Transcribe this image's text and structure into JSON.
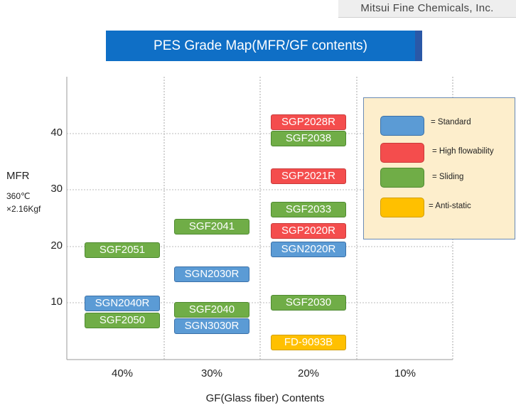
{
  "header": {
    "company": "Mitsui Fine Chemicals, Inc.",
    "title": "PES Grade Map(MFR/GF contents)"
  },
  "chart_data": {
    "type": "scatter",
    "title": "PES Grade Map(MFR/GF contents)",
    "xlabel": "GF(Glass fiber) Contents",
    "ylabel": "MFR",
    "ylabel_sub1": "360℃",
    "ylabel_sub2": "×2.16Kgf",
    "x_categories": [
      "40%",
      "30%",
      "20%",
      "10%"
    ],
    "y_ticks": [
      "10",
      "20",
      "30",
      "40"
    ],
    "ylim": [
      0,
      48
    ],
    "grid": true,
    "legend_position": "right",
    "categories": [
      {
        "key": "standard",
        "label": "= Standard",
        "color": "#5b9bd5"
      },
      {
        "key": "high",
        "label": "= High flowability",
        "color": "#f44d4d"
      },
      {
        "key": "sliding",
        "label": "= Sliding",
        "color": "#70ad47"
      },
      {
        "key": "antistatic",
        "label": "= Anti-static",
        "color": "#ffc000"
      }
    ],
    "points": [
      {
        "name": "SGP2028R",
        "x": "20%",
        "y": 42.0,
        "category": "high"
      },
      {
        "name": "SGF2038",
        "x": "20%",
        "y": 39.1,
        "category": "sliding"
      },
      {
        "name": "SGP2021R",
        "x": "20%",
        "y": 32.4,
        "category": "high"
      },
      {
        "name": "SGF2033",
        "x": "20%",
        "y": 26.5,
        "category": "sliding"
      },
      {
        "name": "SGP2020R",
        "x": "20%",
        "y": 22.7,
        "category": "high"
      },
      {
        "name": "SGN2020R",
        "x": "20%",
        "y": 19.4,
        "category": "standard"
      },
      {
        "name": "SGF2030",
        "x": "20%",
        "y": 10.0,
        "category": "sliding"
      },
      {
        "name": "FD-9093B",
        "x": "20%",
        "y": 2.9,
        "category": "antistatic"
      },
      {
        "name": "SGF2041",
        "x": "30%",
        "y": 23.5,
        "category": "sliding"
      },
      {
        "name": "SGN2030R",
        "x": "30%",
        "y": 15.0,
        "category": "standard"
      },
      {
        "name": "SGF2040",
        "x": "30%",
        "y": 8.7,
        "category": "sliding"
      },
      {
        "name": "SGN3030R",
        "x": "30%",
        "y": 5.9,
        "category": "standard"
      },
      {
        "name": "SGF2051",
        "x": "40%",
        "y": 19.3,
        "category": "sliding"
      },
      {
        "name": "SGN2040R",
        "x": "40%",
        "y": 9.9,
        "category": "standard"
      },
      {
        "name": "SGF2050",
        "x": "40%",
        "y": 6.9,
        "category": "sliding"
      }
    ]
  }
}
